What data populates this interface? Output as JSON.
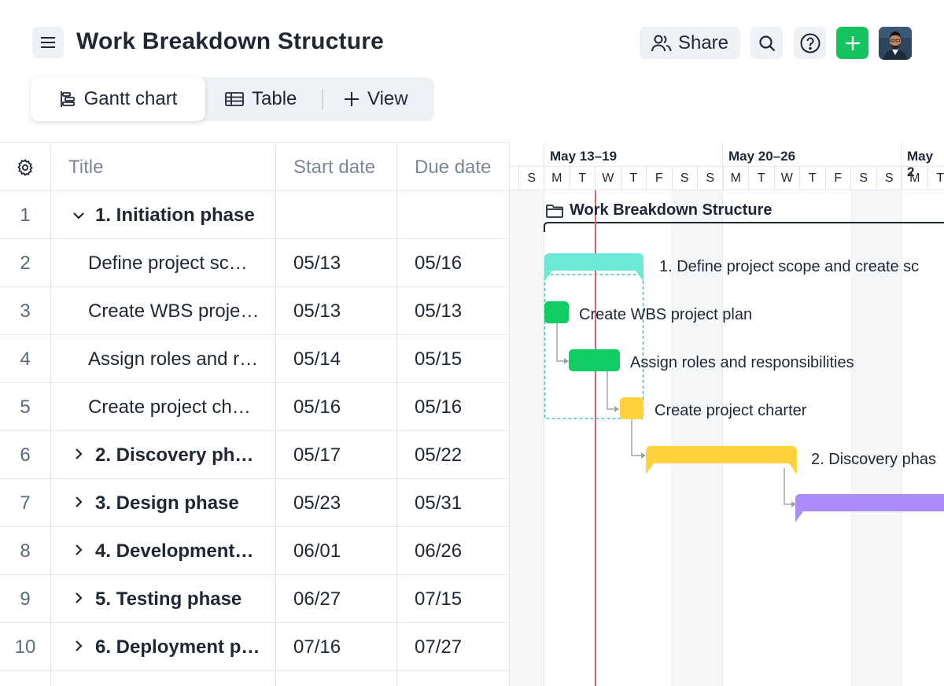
{
  "header": {
    "title": "Work Breakdown Structure",
    "share_label": "Share"
  },
  "icons": {
    "menu": "hamburger-icon",
    "share": "users-icon",
    "search": "search-icon",
    "help": "help-icon",
    "add": "plus-icon",
    "avatar": "avatar",
    "settings": "gear-icon",
    "gantt": "gantt-icon",
    "table": "table-icon",
    "view": "plus-icon",
    "folder": "folder-icon"
  },
  "colors": {
    "accent_green": "#16c45f",
    "teal_bar": "#6ee8d6",
    "green_bar": "#0fcc63",
    "yellow_bar": "#ffd23e",
    "purple_bar": "#a98cf8",
    "today_line": "#e0606e"
  },
  "views": {
    "gantt_label": "Gantt chart",
    "table_label": "Table",
    "add_view_label": "View",
    "active": "Gantt chart"
  },
  "table": {
    "columns": [
      "Title",
      "Start date",
      "Due date"
    ],
    "rows": [
      {
        "num": "1",
        "title": "1. Initiation phase",
        "start": "",
        "due": "",
        "type": "phase",
        "expanded": true
      },
      {
        "num": "2",
        "title": "Define project sc…",
        "start": "05/13",
        "due": "05/16",
        "type": "task"
      },
      {
        "num": "3",
        "title": "Create WBS proje…",
        "start": "05/13",
        "due": "05/13",
        "type": "task"
      },
      {
        "num": "4",
        "title": "Assign roles and r…",
        "start": "05/14",
        "due": "05/15",
        "type": "task"
      },
      {
        "num": "5",
        "title": "Create project ch…",
        "start": "05/16",
        "due": "05/16",
        "type": "task"
      },
      {
        "num": "6",
        "title": "2. Discovery ph…",
        "start": "05/17",
        "due": "05/22",
        "type": "phase",
        "expanded": false
      },
      {
        "num": "7",
        "title": "3. Design phase",
        "start": "05/23",
        "due": "05/31",
        "type": "phase",
        "expanded": false
      },
      {
        "num": "8",
        "title": "4. Development…",
        "start": "06/01",
        "due": "06/26",
        "type": "phase",
        "expanded": false
      },
      {
        "num": "9",
        "title": "5. Testing phase",
        "start": "06/27",
        "due": "07/15",
        "type": "phase",
        "expanded": false
      },
      {
        "num": "10",
        "title": "6. Deployment p…",
        "start": "07/16",
        "due": "07/27",
        "type": "phase",
        "expanded": false
      }
    ]
  },
  "gantt": {
    "weeks": [
      "May 13–19",
      "May 20–26",
      "May 2"
    ],
    "days": [
      "S",
      "M",
      "T",
      "W",
      "T",
      "F",
      "S",
      "S",
      "M",
      "T",
      "W",
      "T",
      "F",
      "S",
      "S",
      "M",
      "T"
    ],
    "project_label": "Work Breakdown Structure",
    "bar_labels": {
      "define": "1. Define project scope and create sc",
      "wbs": "Create WBS project plan",
      "roles": "Assign roles and responsibilities",
      "charter": "Create project charter",
      "discovery": "2. Discovery phas"
    }
  }
}
